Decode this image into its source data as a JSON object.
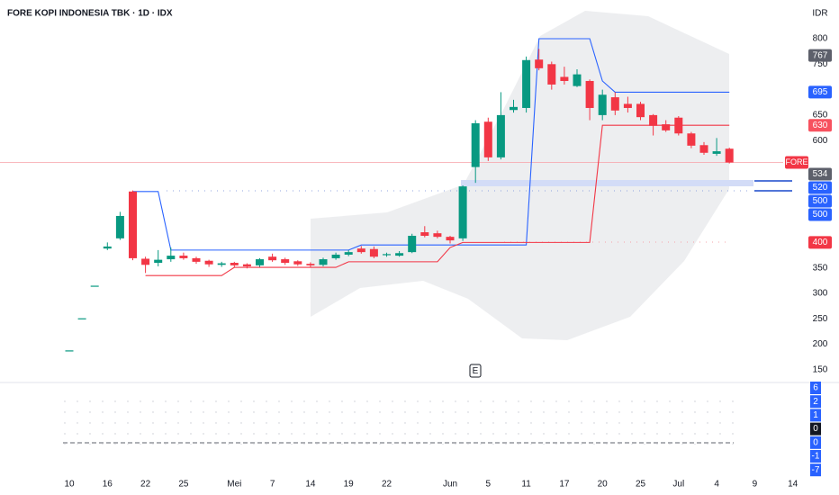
{
  "chart_data": {
    "type": "candlestick",
    "title": "FORE KOPI INDONESIA TBK · 1D · IDX",
    "currency": "IDR",
    "earnings_marker": "E",
    "categories": [
      "10",
      null,
      null,
      "16",
      null,
      null,
      "22",
      null,
      null,
      "25",
      null,
      null,
      null,
      "Mei",
      null,
      null,
      "7",
      null,
      null,
      "14",
      null,
      null,
      "19",
      null,
      null,
      "22",
      null,
      null,
      null,
      null,
      "Jun",
      null,
      null,
      "5",
      null,
      null,
      "11",
      null,
      null,
      "17",
      null,
      null,
      "20",
      null,
      null,
      "25",
      null,
      null,
      "Jul",
      null,
      null,
      "4",
      null,
      null,
      "9",
      null,
      null,
      "14"
    ],
    "open": [
      187,
      250,
      314,
      388,
      408,
      500,
      368,
      360,
      367,
      374,
      369,
      364,
      356,
      360,
      357,
      355,
      372,
      367,
      363,
      358,
      356,
      369,
      376,
      388,
      387,
      376,
      374,
      381,
      420,
      418,
      411,
      408,
      548,
      637,
      567,
      660,
      664,
      759,
      750,
      725,
      707,
      717,
      650,
      685,
      672,
      672,
      650,
      632,
      645,
      614,
      591,
      574,
      584,
      null,
      null,
      null,
      null,
      null
    ],
    "high": [
      187,
      250,
      314,
      400,
      460,
      502,
      372,
      385,
      390,
      380,
      372,
      366,
      362,
      362,
      359,
      369,
      378,
      370,
      365,
      361,
      370,
      380,
      385,
      393,
      392,
      380,
      383,
      417,
      432,
      423,
      413,
      512,
      640,
      645,
      695,
      680,
      765,
      780,
      755,
      745,
      740,
      720,
      700,
      695,
      686,
      676,
      652,
      640,
      648,
      617,
      597,
      605,
      586,
      null,
      null,
      null,
      null,
      null
    ],
    "low": [
      187,
      250,
      314,
      385,
      405,
      365,
      340,
      353,
      362,
      366,
      358,
      352,
      352,
      352,
      349,
      352,
      362,
      356,
      354,
      352,
      353,
      366,
      373,
      378,
      369,
      372,
      372,
      379,
      410,
      408,
      398,
      403,
      517,
      560,
      563,
      655,
      655,
      738,
      700,
      710,
      705,
      640,
      640,
      650,
      655,
      640,
      610,
      617,
      610,
      585,
      572,
      570,
      555,
      null,
      null,
      null,
      null,
      null
    ],
    "close": [
      187,
      250,
      314,
      392,
      452,
      369,
      356,
      366,
      374,
      369,
      362,
      357,
      359,
      355,
      353,
      367,
      365,
      360,
      357,
      355,
      367,
      376,
      381,
      381,
      372,
      376,
      379,
      413,
      413,
      411,
      404,
      510,
      634,
      567,
      650,
      666,
      758,
      742,
      710,
      717,
      730,
      664,
      690,
      659,
      664,
      646,
      629,
      620,
      614,
      590,
      576,
      579,
      557,
      null,
      null,
      null,
      null,
      null
    ],
    "up_color": "#089981",
    "down_color": "#f23645",
    "upper_band": {
      "color": "#2962ff",
      "values": [
        null,
        null,
        null,
        null,
        null,
        500,
        500,
        500,
        385,
        385,
        385,
        385,
        385,
        385,
        385,
        385,
        385,
        385,
        385,
        385,
        385,
        385,
        385,
        395,
        395,
        395,
        395,
        395,
        395,
        395,
        395,
        395,
        395,
        395,
        395,
        395,
        395,
        800,
        800,
        800,
        800,
        800,
        717,
        695,
        695,
        695,
        695,
        695,
        695,
        695,
        695,
        695,
        695,
        null,
        null,
        null,
        null,
        null
      ]
    },
    "lower_band": {
      "color": "#f23645",
      "values": [
        null,
        null,
        null,
        null,
        null,
        null,
        335,
        335,
        335,
        335,
        335,
        335,
        335,
        351,
        351,
        351,
        351,
        351,
        351,
        351,
        351,
        351,
        362,
        362,
        362,
        362,
        362,
        362,
        362,
        362,
        390,
        400,
        400,
        400,
        400,
        400,
        400,
        400,
        400,
        400,
        400,
        400,
        630,
        630,
        630,
        630,
        630,
        630,
        630,
        630,
        630,
        630,
        630,
        null,
        null,
        null,
        null,
        null
      ]
    },
    "ylim": [
      125,
      876
    ],
    "yticks": [
      150,
      200,
      250,
      300,
      350,
      600,
      650,
      750,
      800
    ],
    "price_badges": [
      {
        "value": 767,
        "color": "#5d606b"
      },
      {
        "value": 695,
        "color": "#2962ff"
      },
      {
        "value": 630,
        "color": "#f7525f"
      },
      {
        "value": 534,
        "color": "#5d606b"
      },
      {
        "value": 520,
        "color": "#2962ff"
      },
      {
        "value": 500,
        "color": "#2962ff"
      },
      {
        "value": 500,
        "color": "#2962ff"
      },
      {
        "value": 400,
        "color": "#f23645"
      }
    ],
    "symbol_badge": {
      "label": "FORE",
      "value": 557,
      "color": "#f23645"
    },
    "indicator_badges": [
      {
        "value": 6,
        "color": "#2962ff"
      },
      {
        "value": 2,
        "color": "#2962ff"
      },
      {
        "value": 1,
        "color": "#2962ff"
      },
      {
        "value": 0,
        "color": "#131722"
      },
      {
        "value": 0,
        "color": "#2962ff"
      },
      {
        "value": -1,
        "color": "#2962ff"
      },
      {
        "value": -7,
        "color": "#2962ff"
      }
    ]
  }
}
